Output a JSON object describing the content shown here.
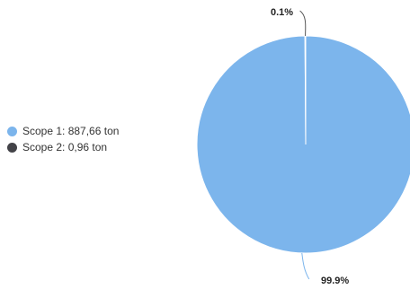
{
  "chart_data": {
    "type": "pie",
    "title": "",
    "series": [
      {
        "name": "Scope 1: 887,66 ton",
        "value": 887.66,
        "color": "#7cb5ec",
        "percent_label": "99.9%"
      },
      {
        "name": "Scope 2: 0,96 ton",
        "value": 0.96,
        "color": "#434348",
        "percent_label": "0.1%"
      }
    ],
    "legend_position": "left",
    "start_angle": "top",
    "direction": "clockwise"
  },
  "legend": {
    "items": [
      {
        "label": "Scope 1: 887,66 ton",
        "color": "#7cb5ec"
      },
      {
        "label": "Scope 2: 0,96 ton",
        "color": "#434348"
      }
    ]
  }
}
